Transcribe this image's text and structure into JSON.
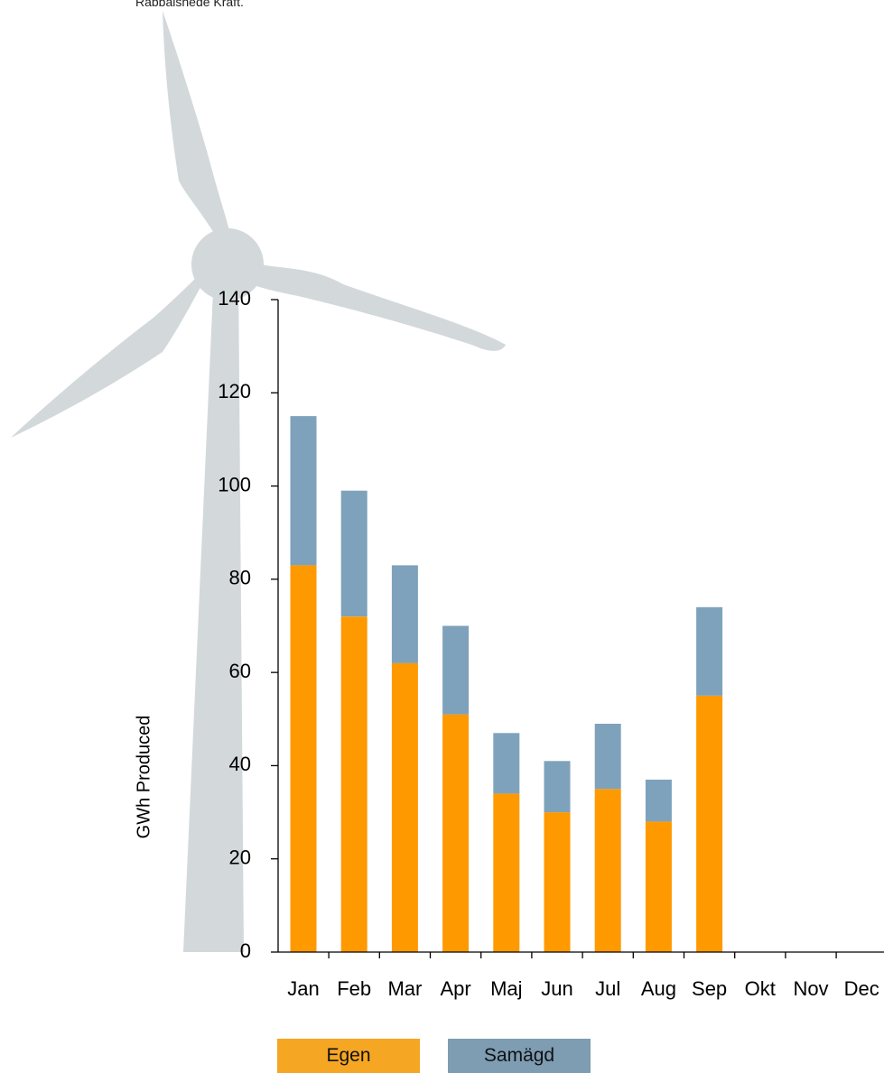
{
  "top_note": "Rabbalshede Kraft.",
  "colors": {
    "egen": "#FF9900",
    "samagd": "#7EA2BB",
    "turbine": "#D3D8DB",
    "legend_egen": "#F5A623",
    "legend_samagd": "#7E9CB2"
  },
  "chart_data": {
    "type": "bar",
    "stacked": true,
    "categories": [
      "Jan",
      "Feb",
      "Mar",
      "Apr",
      "Maj",
      "Jun",
      "Jul",
      "Aug",
      "Sep",
      "Okt",
      "Nov",
      "Dec"
    ],
    "series": [
      {
        "name": "Egen",
        "values": [
          83,
          72,
          62,
          51,
          34,
          30,
          35,
          28,
          55,
          0,
          0,
          0
        ]
      },
      {
        "name": "Samägd",
        "values": [
          32,
          27,
          21,
          19,
          13,
          11,
          14,
          9,
          19,
          0,
          0,
          0
        ]
      }
    ],
    "ylabel": "GWh Produced",
    "ylim": [
      0,
      140
    ],
    "yticks": [
      "0",
      "20",
      "40",
      "60",
      "80",
      "100",
      "120",
      "140"
    ],
    "grid": false,
    "legend_position": "bottom-left"
  }
}
